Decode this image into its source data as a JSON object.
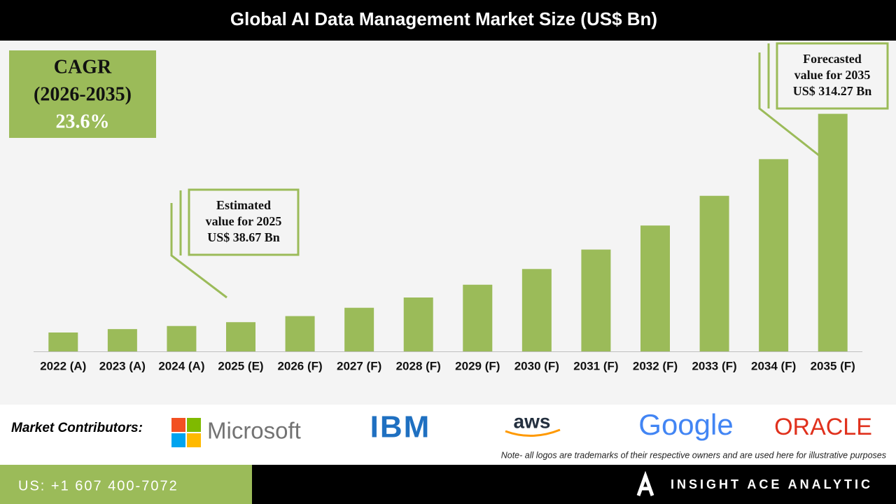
{
  "chart_data": {
    "type": "bar",
    "title": "Global AI Data Management Market Size (US$ Bn)",
    "categories": [
      "2022 (A)",
      "2023 (A)",
      "2024 (A)",
      "2025 (E)",
      "2026 (F)",
      "2027 (F)",
      "2028 (F)",
      "2029 (F)",
      "2030 (F)",
      "2031 (F)",
      "2032 (F)",
      "2033 (F)",
      "2034 (F)",
      "2035 (F)"
    ],
    "values": [
      25.0,
      29.5,
      33.6,
      38.67,
      46.7,
      57.7,
      71.3,
      88.2,
      109.0,
      134.7,
      166.5,
      205.8,
      254.3,
      314.27
    ],
    "color": "#9bbb59",
    "ylim": [
      0,
      400
    ]
  },
  "cagr": {
    "label": "CAGR",
    "period": "(2026-2035)",
    "value": "23.6%"
  },
  "annotations": [
    {
      "lines": [
        "Estimated",
        "value for 2025",
        "US$ 38.67 Bn"
      ]
    },
    {
      "lines": [
        "Forecasted",
        "value for 2035",
        "US$ 314.27 Bn"
      ]
    }
  ],
  "contributors": {
    "label": "Market Contributors:",
    "logos": [
      "Microsoft",
      "IBM",
      "aws",
      "Google",
      "ORACLE"
    ],
    "note": "Note- all logos are trademarks of their respective owners and are used here for illustrative purposes"
  },
  "footer": {
    "phone": "US: +1 607 400-7072",
    "brand": "INSIGHT ACE ANALYTIC"
  }
}
